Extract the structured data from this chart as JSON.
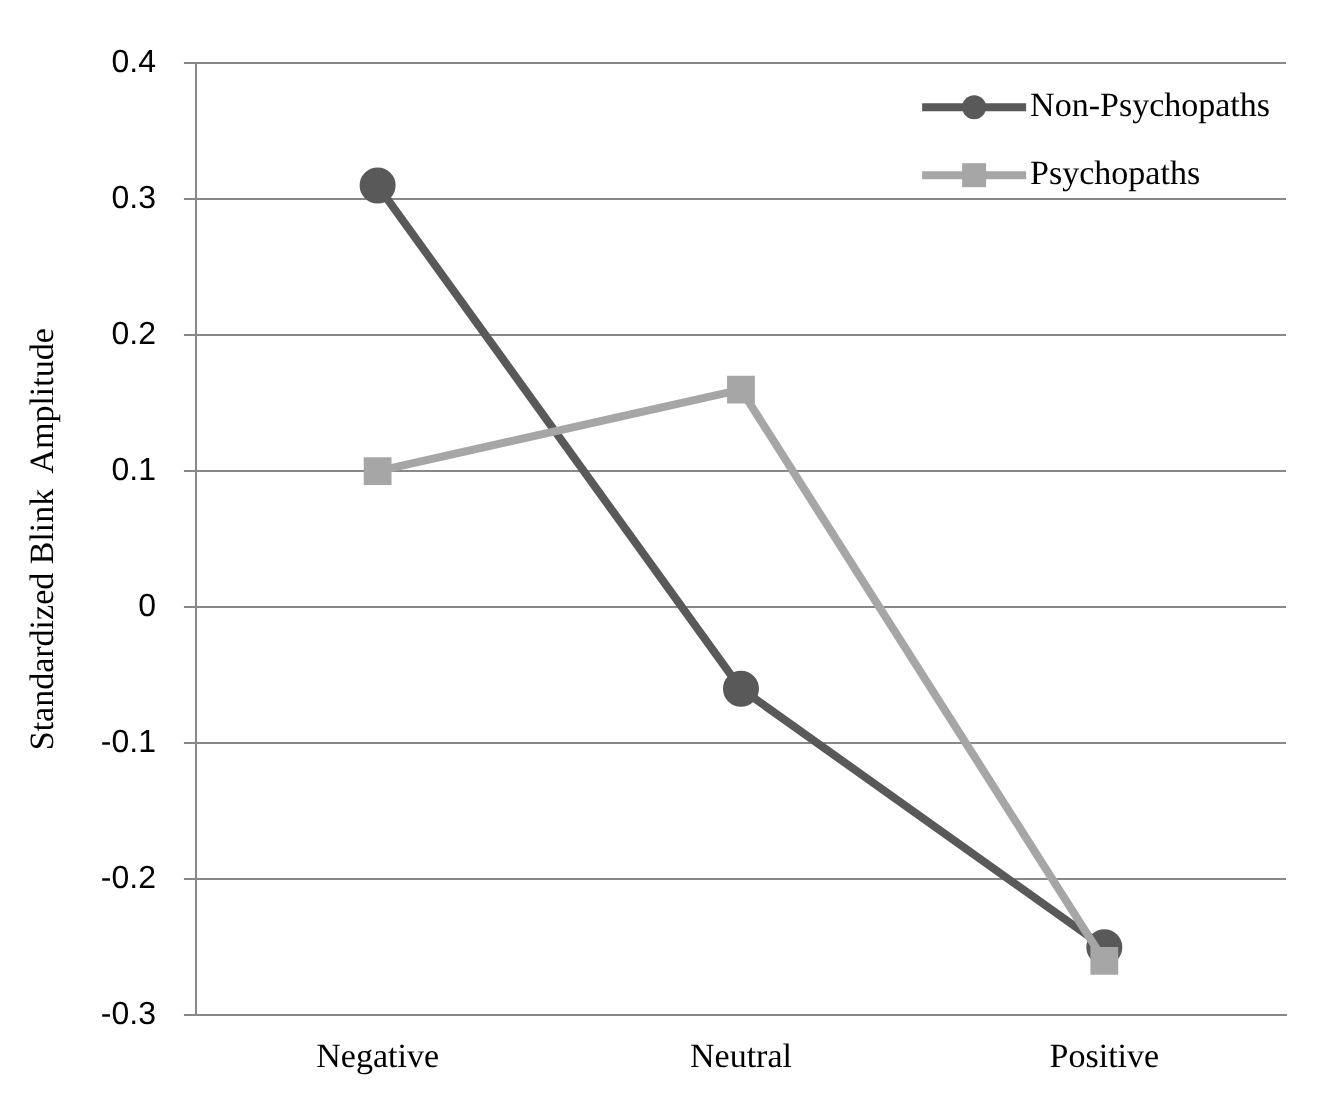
{
  "chart_data": {
    "type": "line",
    "ylabel": "Standardized Blink  Amplitude",
    "categories": [
      "Negative",
      "Neutral",
      "Positive"
    ],
    "series": [
      {
        "name": "Non-Psychopaths",
        "color": "#595959",
        "marker": "circle",
        "values": [
          0.31,
          -0.06,
          -0.25
        ]
      },
      {
        "name": "Psychopaths",
        "color": "#a6a6a6",
        "marker": "square",
        "values": [
          0.1,
          0.16,
          -0.26
        ]
      }
    ],
    "ylim": [
      -0.3,
      0.4
    ],
    "yticks": [
      -0.3,
      -0.2,
      -0.1,
      0,
      0.1,
      0.2,
      0.3,
      0.4
    ],
    "grid": "y",
    "legend": "top right"
  }
}
